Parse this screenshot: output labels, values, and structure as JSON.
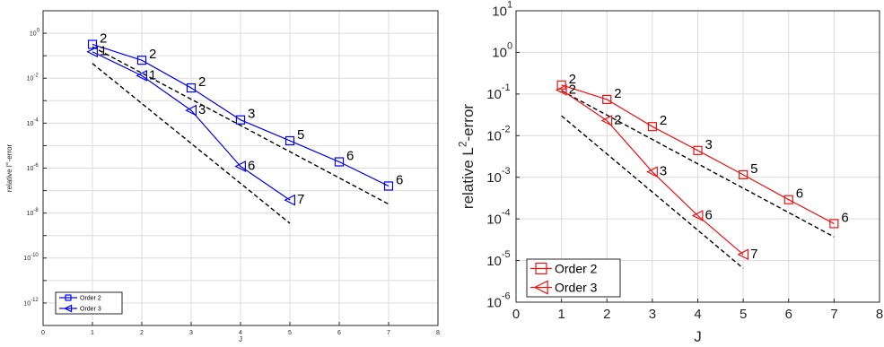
{
  "chart_data": [
    {
      "type": "line",
      "title": "",
      "xlabel": "J",
      "ylabel": "relative l∞-error",
      "ylabel_main": "relative l",
      "ylabel_sup": "∞",
      "ylabel_tail": "-error",
      "xlim": [
        0,
        8
      ],
      "ylim_log10": [
        -13,
        1
      ],
      "yscale": "log",
      "grid": true,
      "legend": "bottom-left",
      "x_ticks": [
        "0",
        "1",
        "2",
        "3",
        "4",
        "5",
        "6",
        "7",
        "8"
      ],
      "y_ticks": [
        {
          "exp": 0,
          "base": "10",
          "sup": "0"
        },
        {
          "exp": -2,
          "base": "10",
          "sup": "-2"
        },
        {
          "exp": -4,
          "base": "10",
          "sup": "-4"
        },
        {
          "exp": -6,
          "base": "10",
          "sup": "-6"
        },
        {
          "exp": -8,
          "base": "10",
          "sup": "-8"
        },
        {
          "exp": -10,
          "base": "10",
          "sup": "-10"
        },
        {
          "exp": -12,
          "base": "10",
          "sup": "-12"
        }
      ],
      "series": [
        {
          "name": "Order 2",
          "marker": "square",
          "color": "#0000ff",
          "x": [
            1,
            2,
            3,
            4,
            5,
            6,
            7
          ],
          "y": [
            0.32,
            0.063,
            0.0037,
            0.00014,
            1.65e-05,
            1.9e-06,
            1.6e-07
          ],
          "labels": [
            "2",
            "2",
            "2",
            "3",
            "5",
            "6",
            "6"
          ]
        },
        {
          "name": "Order 3",
          "marker": "triangle-left",
          "color": "#0000ff",
          "x": [
            1,
            2,
            3,
            4,
            5
          ],
          "y": [
            0.15,
            0.013,
            0.00037,
            1.2e-06,
            3.8e-08
          ],
          "labels": [
            "1",
            "1",
            "3",
            "6",
            "7"
          ]
        }
      ],
      "reference_lines": [
        {
          "x": [
            1,
            7
          ],
          "y": [
            0.25,
            2.5e-08
          ],
          "style": "dashed",
          "color": "#000000"
        },
        {
          "x": [
            1,
            5
          ],
          "y": [
            0.045,
            3.5e-09
          ],
          "style": "dashed",
          "color": "#000000"
        }
      ]
    },
    {
      "type": "line",
      "title": "",
      "xlabel": "J",
      "ylabel": "relative L2-error",
      "ylabel_main": "relative  L",
      "ylabel_sup": "2",
      "ylabel_tail": "-error",
      "xlim": [
        0,
        8
      ],
      "ylim_log10": [
        -6,
        1
      ],
      "yscale": "log",
      "grid": true,
      "legend": "bottom-left",
      "x_ticks": [
        "0",
        "1",
        "2",
        "3",
        "4",
        "5",
        "6",
        "7",
        "8"
      ],
      "y_ticks": [
        {
          "exp": 1,
          "base": "10",
          "sup": "1"
        },
        {
          "exp": 0,
          "base": "10",
          "sup": "0"
        },
        {
          "exp": -1,
          "base": "10",
          "sup": "-1"
        },
        {
          "exp": -2,
          "base": "10",
          "sup": "-2"
        },
        {
          "exp": -3,
          "base": "10",
          "sup": "-3"
        },
        {
          "exp": -4,
          "base": "10",
          "sup": "-4"
        },
        {
          "exp": -5,
          "base": "10",
          "sup": "-5"
        },
        {
          "exp": -6,
          "base": "10",
          "sup": "-6"
        }
      ],
      "series": [
        {
          "name": "Order 2",
          "marker": "square",
          "color": "#ee1111",
          "x": [
            1,
            2,
            3,
            4,
            5,
            6,
            7
          ],
          "y": [
            0.165,
            0.074,
            0.0165,
            0.0044,
            0.00115,
            0.00029,
            7.7e-05
          ],
          "labels": [
            "2",
            "2",
            "2",
            "3",
            "5",
            "6",
            "6"
          ]
        },
        {
          "name": "Order 3",
          "marker": "triangle-left",
          "color": "#ee1111",
          "x": [
            1,
            2,
            3,
            4,
            5
          ],
          "y": [
            0.125,
            0.023,
            0.00135,
            0.00012,
            1.4e-05
          ],
          "labels": [
            "2",
            "2",
            "3",
            "6",
            "7"
          ]
        }
      ],
      "reference_lines": [
        {
          "x": [
            1,
            7
          ],
          "y": [
            0.12,
            3.7e-05
          ],
          "style": "dashed",
          "color": "#000000"
        },
        {
          "x": [
            1,
            5
          ],
          "y": [
            0.03,
            6.5e-06
          ],
          "style": "dashed",
          "color": "#000000"
        }
      ]
    }
  ]
}
